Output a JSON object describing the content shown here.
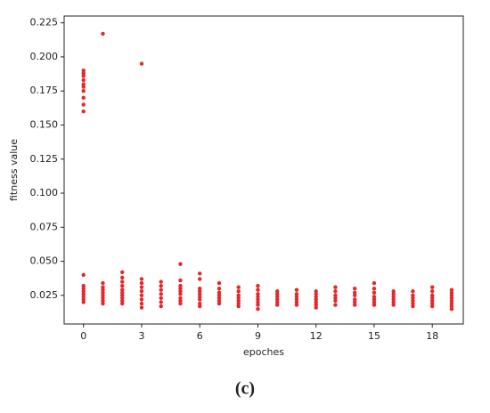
{
  "chart_data": {
    "type": "scatter",
    "xlabel": "epoches",
    "ylabel": "fitness value",
    "caption": "(c)",
    "color": "#e8262a",
    "x": [
      0,
      0,
      0,
      0,
      0,
      0,
      0,
      0,
      0,
      0,
      0,
      0,
      0,
      0,
      0,
      0,
      0,
      0,
      1,
      1,
      1,
      1,
      1,
      1,
      1,
      1,
      1,
      2,
      2,
      2,
      2,
      2,
      2,
      2,
      2,
      2,
      2,
      3,
      3,
      3,
      3,
      3,
      3,
      3,
      3,
      3,
      4,
      4,
      4,
      4,
      4,
      4,
      4,
      5,
      5,
      5,
      5,
      5,
      5,
      5,
      5,
      5,
      6,
      6,
      6,
      6,
      6,
      6,
      6,
      6,
      6,
      7,
      7,
      7,
      7,
      7,
      7,
      7,
      8,
      8,
      8,
      8,
      8,
      8,
      8,
      9,
      9,
      9,
      9,
      9,
      9,
      9,
      9,
      10,
      10,
      10,
      10,
      10,
      10,
      11,
      11,
      11,
      11,
      11,
      11,
      12,
      12,
      12,
      12,
      12,
      12,
      12,
      13,
      13,
      13,
      13,
      13,
      13,
      14,
      14,
      14,
      14,
      14,
      14,
      15,
      15,
      15,
      15,
      15,
      15,
      15,
      16,
      16,
      16,
      16,
      16,
      16,
      17,
      17,
      17,
      17,
      17,
      17,
      18,
      18,
      18,
      18,
      18,
      18,
      18,
      19,
      19,
      19,
      19,
      19,
      19,
      19,
      19
    ],
    "values": [
      0.04,
      0.032,
      0.03,
      0.028,
      0.026,
      0.024,
      0.022,
      0.02,
      0.16,
      0.165,
      0.17,
      0.175,
      0.178,
      0.18,
      0.183,
      0.186,
      0.188,
      0.19,
      0.217,
      0.034,
      0.031,
      0.029,
      0.027,
      0.025,
      0.023,
      0.021,
      0.019,
      0.042,
      0.038,
      0.035,
      0.032,
      0.029,
      0.027,
      0.025,
      0.023,
      0.021,
      0.019,
      0.195,
      0.037,
      0.034,
      0.031,
      0.028,
      0.025,
      0.022,
      0.019,
      0.016,
      0.035,
      0.032,
      0.029,
      0.026,
      0.023,
      0.02,
      0.017,
      0.048,
      0.036,
      0.032,
      0.03,
      0.028,
      0.026,
      0.023,
      0.021,
      0.019,
      0.041,
      0.037,
      0.03,
      0.028,
      0.026,
      0.024,
      0.022,
      0.019,
      0.017,
      0.034,
      0.03,
      0.027,
      0.025,
      0.023,
      0.021,
      0.019,
      0.031,
      0.028,
      0.025,
      0.023,
      0.021,
      0.019,
      0.017,
      0.032,
      0.029,
      0.026,
      0.024,
      0.022,
      0.02,
      0.018,
      0.015,
      0.028,
      0.026,
      0.024,
      0.022,
      0.02,
      0.018,
      0.029,
      0.026,
      0.024,
      0.022,
      0.02,
      0.018,
      0.028,
      0.026,
      0.024,
      0.022,
      0.02,
      0.018,
      0.016,
      0.031,
      0.028,
      0.025,
      0.023,
      0.021,
      0.018,
      0.03,
      0.027,
      0.025,
      0.022,
      0.02,
      0.018,
      0.034,
      0.03,
      0.027,
      0.024,
      0.022,
      0.02,
      0.018,
      0.028,
      0.026,
      0.024,
      0.022,
      0.02,
      0.018,
      0.028,
      0.025,
      0.023,
      0.021,
      0.019,
      0.017,
      0.031,
      0.028,
      0.025,
      0.023,
      0.021,
      0.019,
      0.017,
      0.029,
      0.027,
      0.025,
      0.023,
      0.021,
      0.019,
      0.017,
      0.015
    ],
    "xlim": [
      -1,
      19.6
    ],
    "ylim": [
      0.004,
      0.23
    ],
    "xticks": [
      0,
      3,
      6,
      9,
      12,
      15,
      18
    ],
    "yticks": [
      0.025,
      {
        "value": 0.05,
        "label": "0.050"
      },
      0.075,
      {
        "value": 0.1,
        "label": "0.100"
      },
      0.125,
      {
        "value": 0.15,
        "label": "0.150"
      },
      0.175,
      {
        "value": 0.2,
        "label": "0.200"
      },
      0.225
    ]
  }
}
